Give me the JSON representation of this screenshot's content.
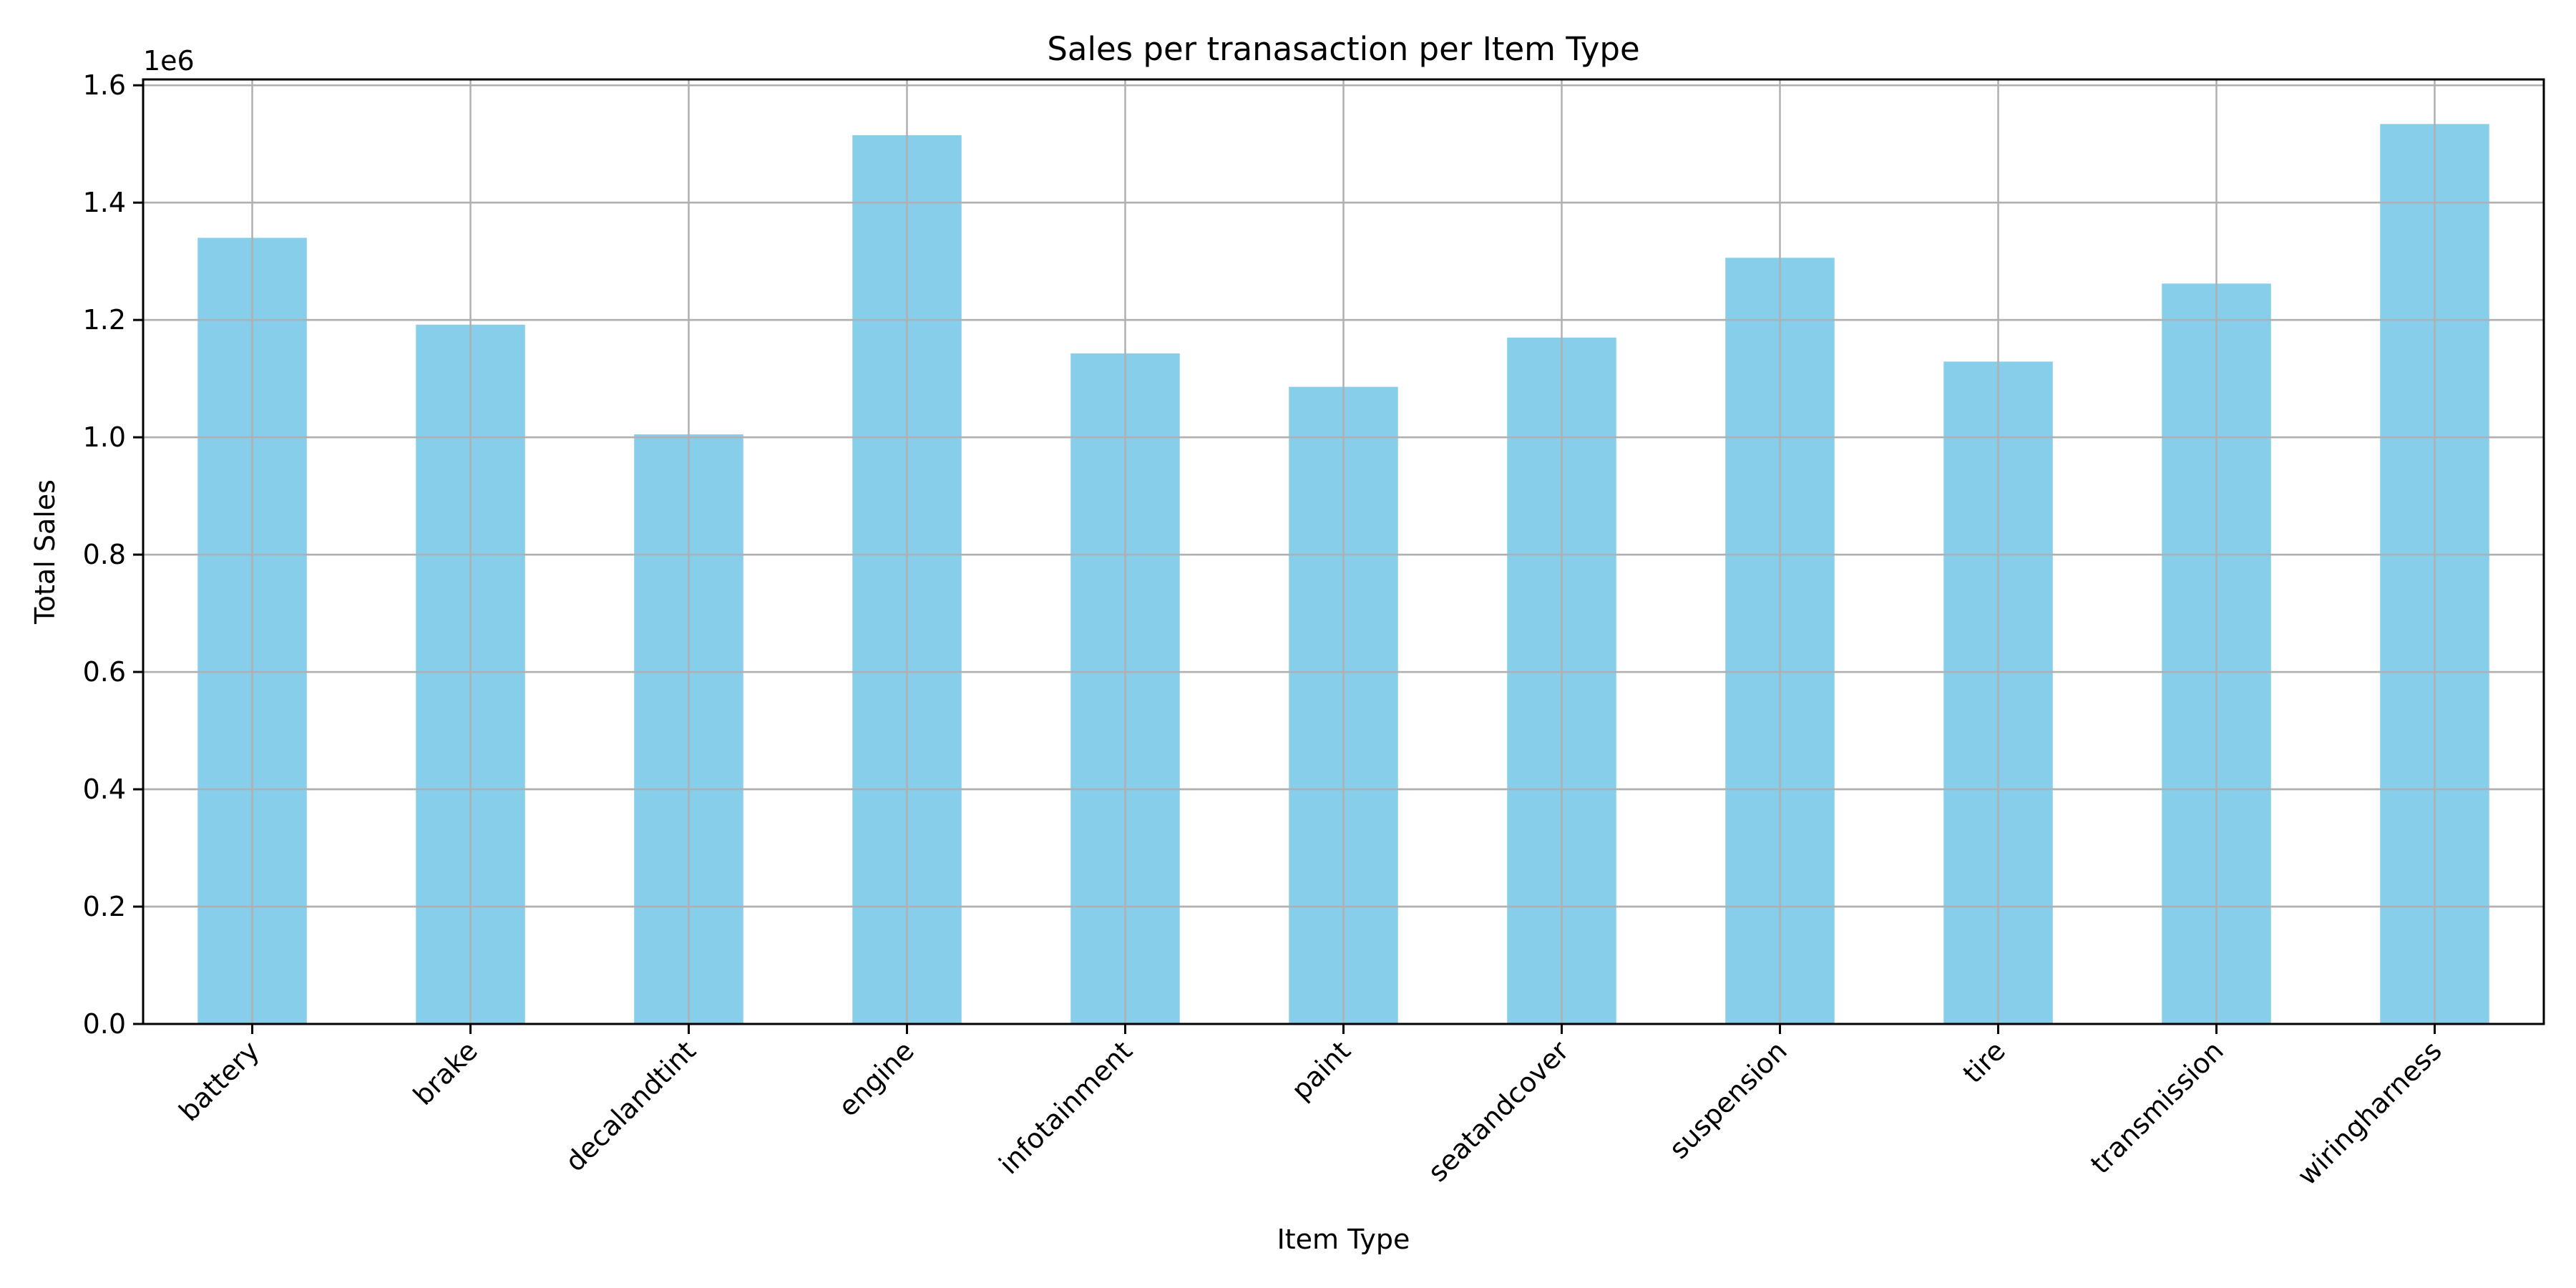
{
  "chart_data": {
    "type": "bar",
    "title": "Sales per tranasaction per Item Type",
    "xlabel": "Item Type",
    "ylabel": "Total Sales",
    "y_offset_label": "1e6",
    "categories": [
      "battery",
      "brake",
      "decalandtint",
      "engine",
      "infotainment",
      "paint",
      "seatandcover",
      "suspension",
      "tire",
      "transmission",
      "wiringharness"
    ],
    "values": [
      1340000,
      1192000,
      1005000,
      1515000,
      1143000,
      1086000,
      1170000,
      1306000,
      1129000,
      1262000,
      1534000
    ],
    "ylim": [
      0,
      1610000
    ],
    "yticks": [
      0,
      200000,
      400000,
      600000,
      800000,
      1000000,
      1200000,
      1400000,
      1600000
    ],
    "ytick_labels": [
      "0.0",
      "0.2",
      "0.4",
      "0.6",
      "0.8",
      "1.0",
      "1.2",
      "1.4",
      "1.6"
    ],
    "bar_color": "#87ceeb",
    "grid": true,
    "xtick_rotation": 45
  }
}
